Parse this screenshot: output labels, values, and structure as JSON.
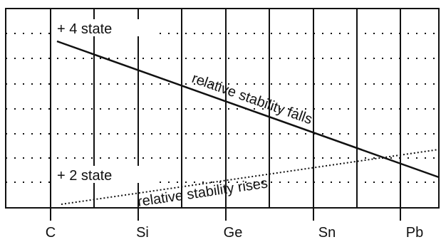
{
  "diagram": {
    "top_label": "+ 4 state",
    "bottom_label": "+ 2 state",
    "falling_line_label": "relative stability falls",
    "rising_line_label": "relative stability rises",
    "elements": [
      "C",
      "Si",
      "Ge",
      "Sn",
      "Pb"
    ],
    "colors": {
      "line": "#111111",
      "grid": "#111111",
      "background": "#ffffff"
    }
  }
}
